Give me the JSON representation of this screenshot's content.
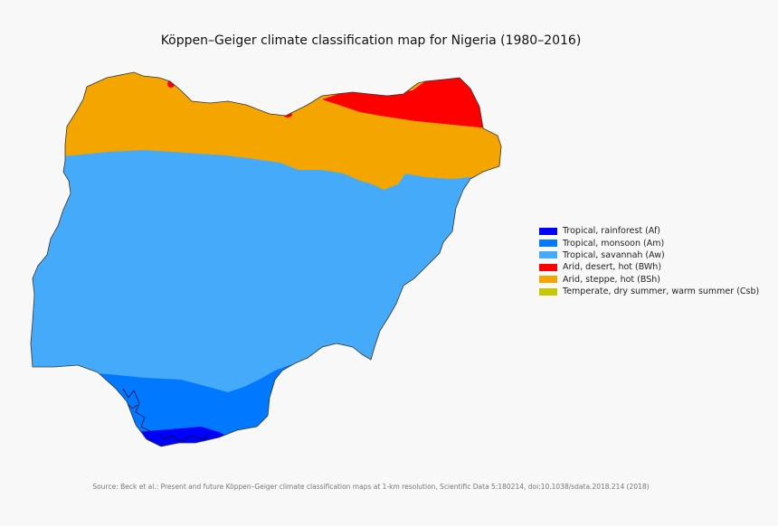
{
  "title": "Köppen–Geiger climate classification map for Nigeria (1980–2016)",
  "legend": [
    {
      "label": "Tropical, rainforest (Af)",
      "color": "#0000fe"
    },
    {
      "label": "Tropical, monsoon (Am)",
      "color": "#0078ff"
    },
    {
      "label": "Tropical, savannah (Aw)",
      "color": "#46aafa"
    },
    {
      "label": "Arid, desert, hot (BWh)",
      "color": "#ff0000"
    },
    {
      "label": "Arid, steppe, hot (BSh)",
      "color": "#f5a500"
    },
    {
      "label": "Temperate, dry summer, warm summer (Csb)",
      "color": "#c8c800"
    }
  ],
  "source": "Source: Beck et al.: Present and future Köppen–Geiger climate classification maps at 1-km resolution, Scientific Data 5:180214, doi:10.1038/sdata.2018.214 (2018)"
}
